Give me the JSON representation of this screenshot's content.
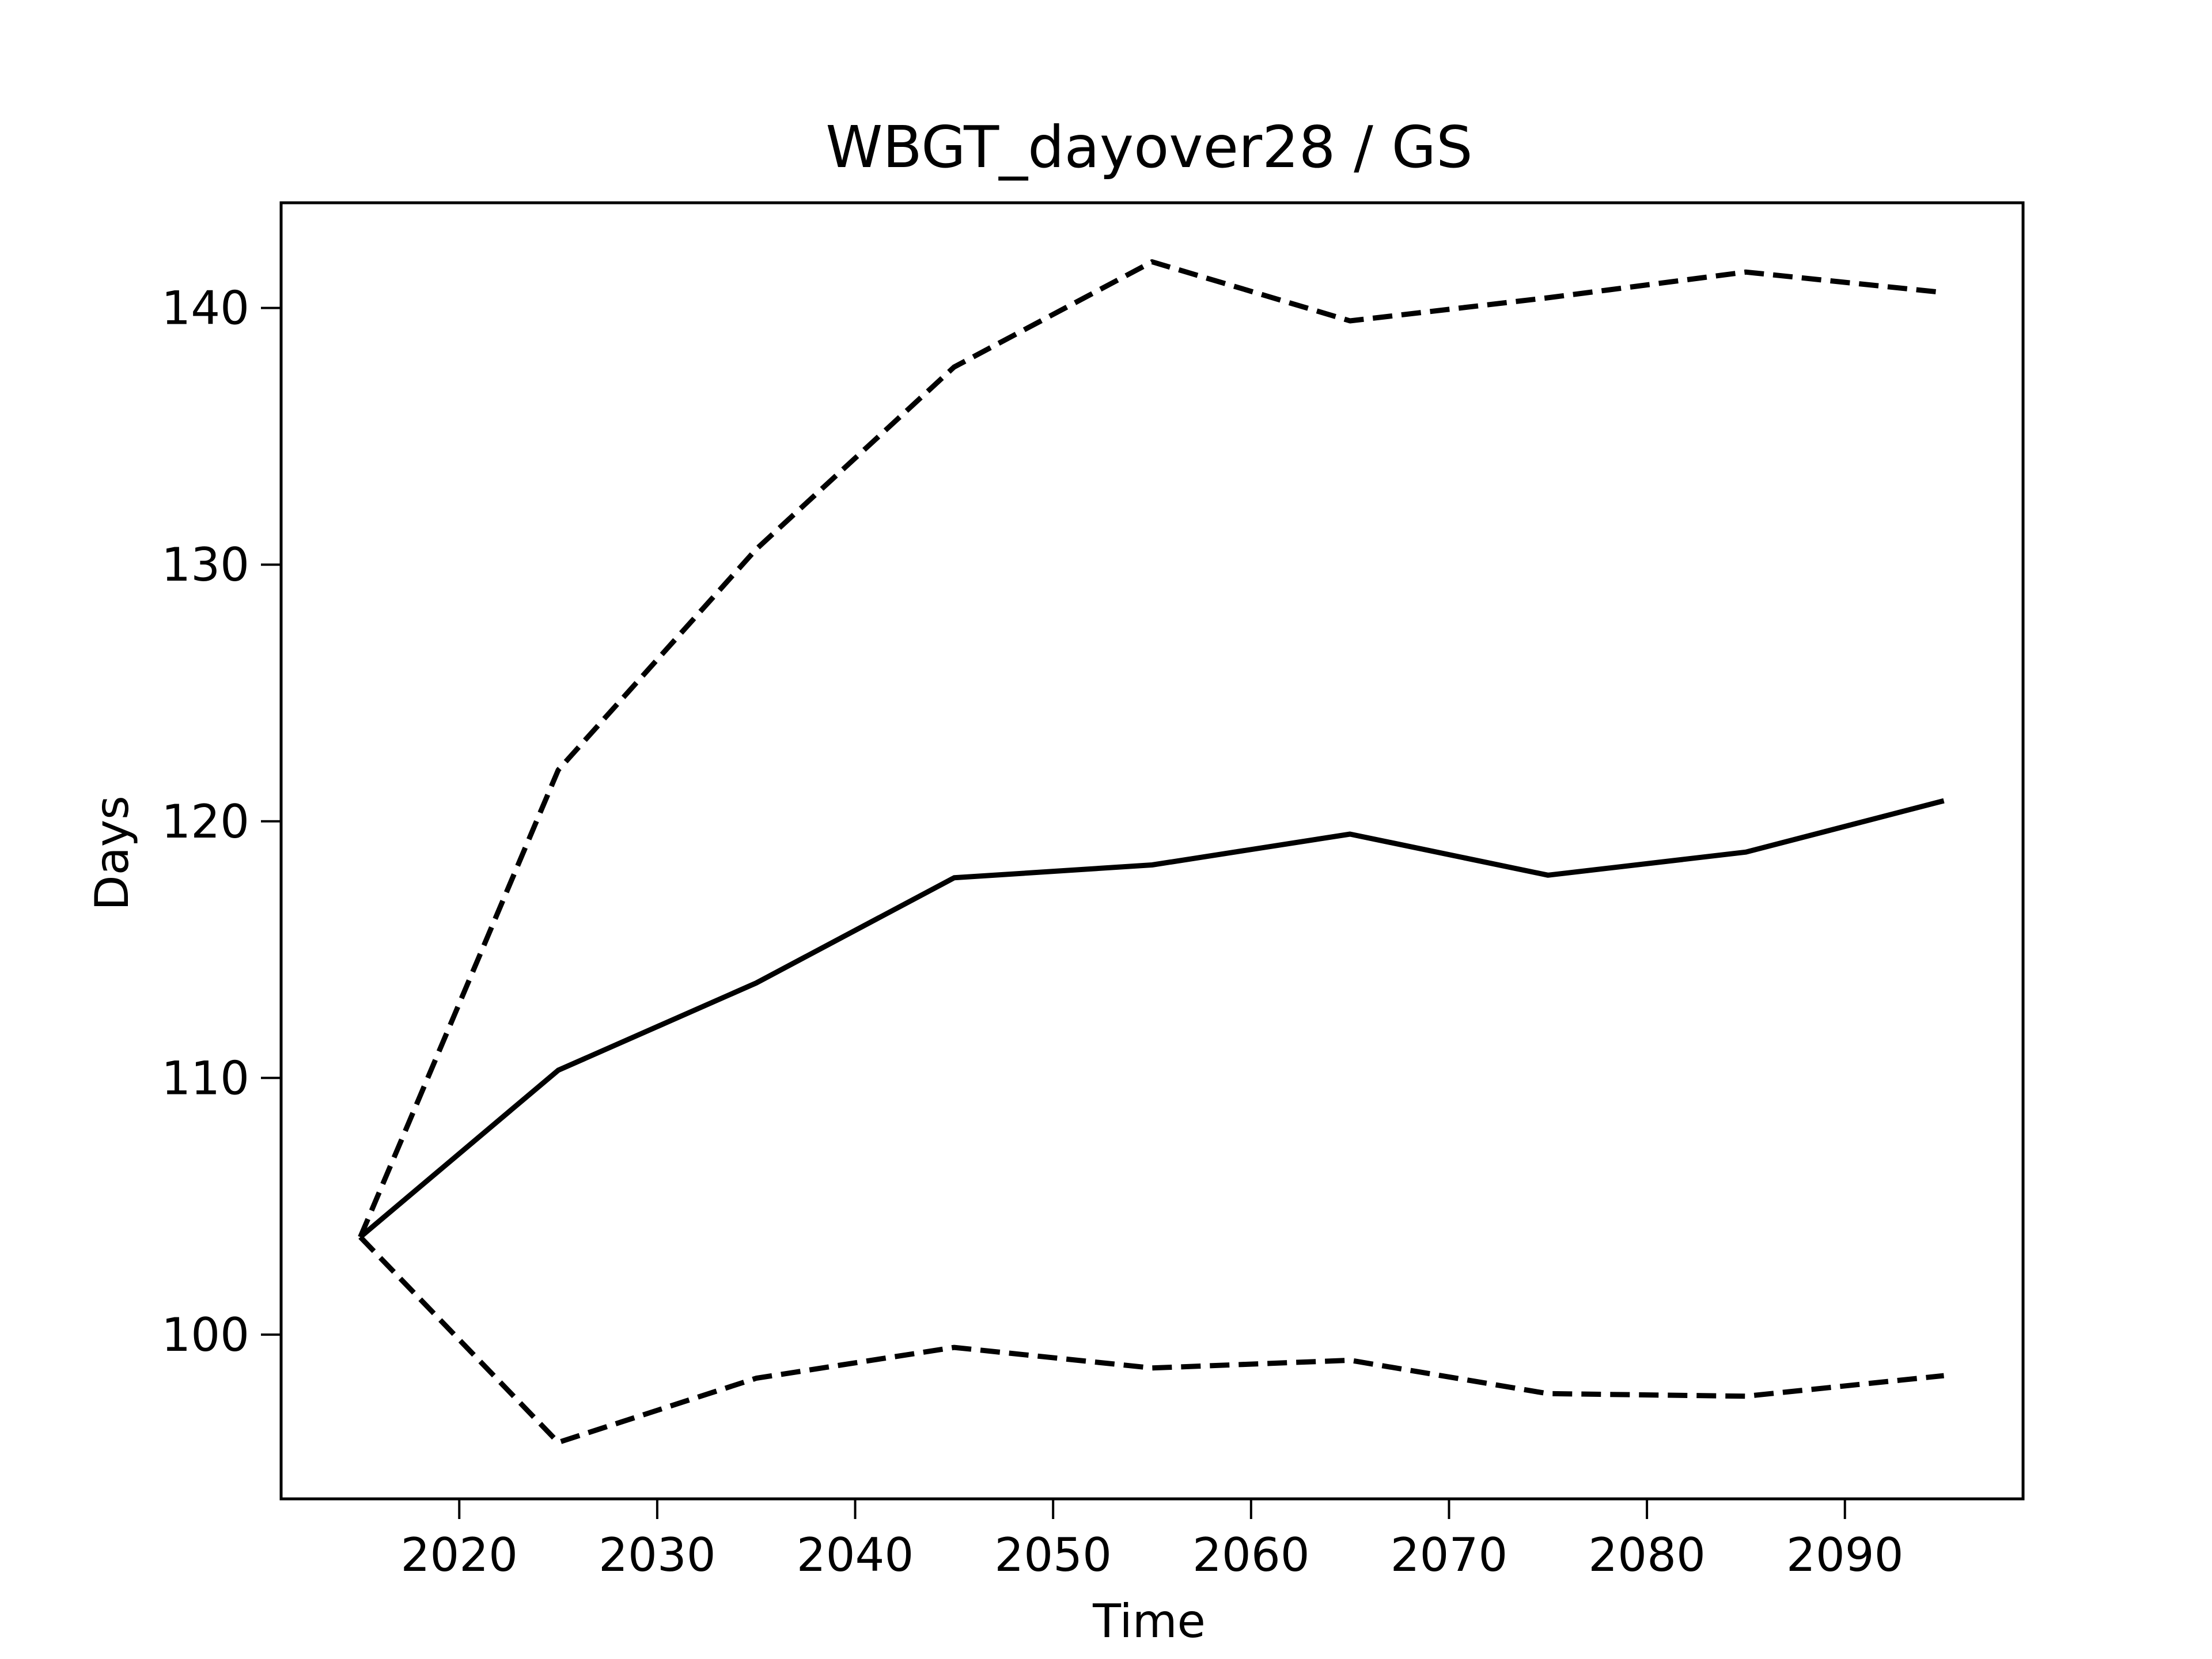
{
  "chart_data": {
    "type": "line",
    "title": "WBGT_dayover28 / GS",
    "xlabel": "Time",
    "ylabel": "Days",
    "xlim": [
      2011,
      2099
    ],
    "ylim": [
      93.6,
      144.1
    ],
    "xticks": [
      2020,
      2030,
      2040,
      2050,
      2060,
      2070,
      2080,
      2090
    ],
    "yticks": [
      100,
      110,
      120,
      130,
      140
    ],
    "x": [
      2015,
      2025,
      2035,
      2045,
      2055,
      2065,
      2075,
      2085,
      2095
    ],
    "grid": false,
    "legend": "none",
    "series": [
      {
        "style": "solid",
        "color": "#000000",
        "values": [
          103.8,
          110.3,
          113.7,
          117.8,
          118.3,
          119.5,
          117.9,
          118.8,
          120.8
        ]
      },
      {
        "style": "dashed",
        "color": "#000000",
        "values": [
          103.8,
          122.0,
          130.6,
          137.7,
          141.8,
          139.5,
          140.4,
          141.4,
          140.6
        ]
      },
      {
        "style": "dashed",
        "color": "#000000",
        "values": [
          103.8,
          95.8,
          98.3,
          99.5,
          98.7,
          99.0,
          97.7,
          97.6,
          98.4
        ]
      }
    ]
  }
}
